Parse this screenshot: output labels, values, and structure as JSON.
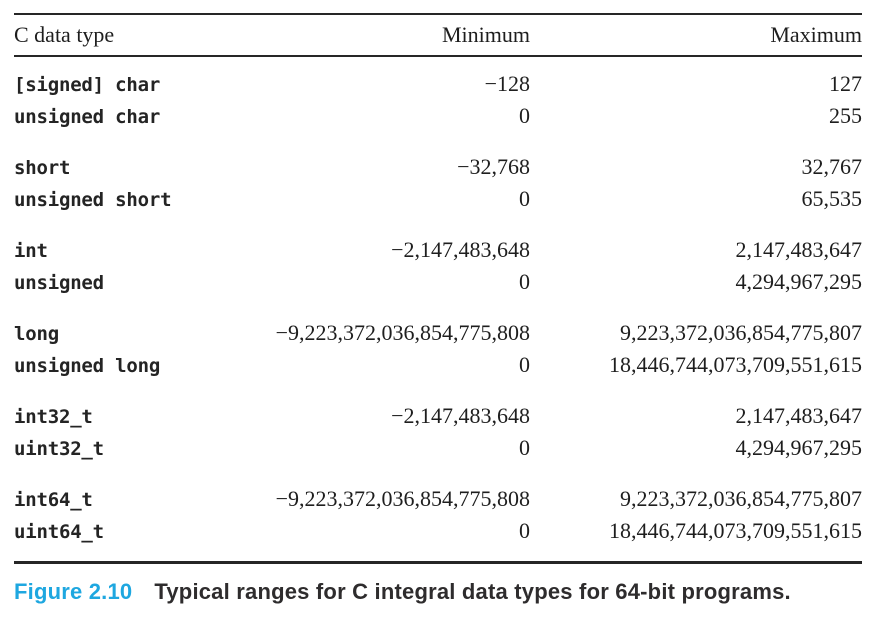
{
  "figure": {
    "label": "Figure 2.10",
    "caption": "Typical ranges for C integral data types for 64-bit programs."
  },
  "colors": {
    "figure_label": "#1ea7e0",
    "text": "#1e1e1e",
    "rule": "#262626"
  },
  "table": {
    "headers": {
      "type": "C data type",
      "minimum": "Minimum",
      "maximum": "Maximum"
    },
    "groups": [
      {
        "rows": [
          {
            "type": "[signed] char",
            "minimum": "−128",
            "maximum": "127"
          },
          {
            "type": "unsigned char",
            "minimum": "0",
            "maximum": "255"
          }
        ]
      },
      {
        "rows": [
          {
            "type": "short",
            "minimum": "−32,768",
            "maximum": "32,767"
          },
          {
            "type": "unsigned short",
            "minimum": "0",
            "maximum": "65,535"
          }
        ]
      },
      {
        "rows": [
          {
            "type": "int",
            "minimum": "−2,147,483,648",
            "maximum": "2,147,483,647"
          },
          {
            "type": "unsigned",
            "minimum": "0",
            "maximum": "4,294,967,295"
          }
        ]
      },
      {
        "rows": [
          {
            "type": "long",
            "minimum": "−9,223,372,036,854,775,808",
            "maximum": "9,223,372,036,854,775,807"
          },
          {
            "type": "unsigned long",
            "minimum": "0",
            "maximum": "18,446,744,073,709,551,615"
          }
        ]
      },
      {
        "rows": [
          {
            "type": "int32_t",
            "minimum": "−2,147,483,648",
            "maximum": "2,147,483,647"
          },
          {
            "type": "uint32_t",
            "minimum": "0",
            "maximum": "4,294,967,295"
          }
        ]
      },
      {
        "rows": [
          {
            "type": "int64_t",
            "minimum": "−9,223,372,036,854,775,808",
            "maximum": "9,223,372,036,854,775,807"
          },
          {
            "type": "uint64_t",
            "minimum": "0",
            "maximum": "18,446,744,073,709,551,615"
          }
        ]
      }
    ]
  }
}
